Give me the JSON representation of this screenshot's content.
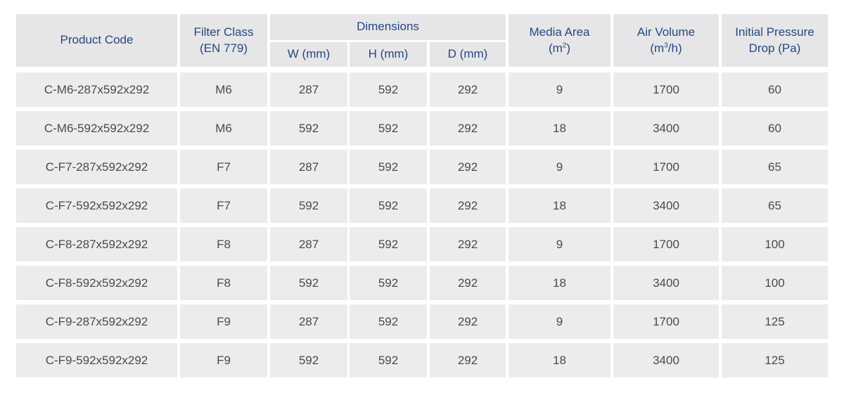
{
  "headers": {
    "product_code": "Product Code",
    "filter_class_line1": "Filter Class",
    "filter_class_line2": "(EN 779)",
    "dimensions": "Dimensions",
    "w": "W (mm)",
    "h": "H (mm)",
    "d": "D (mm)",
    "media_area_line1": "Media Area",
    "media_area_unit_base": "(m",
    "media_area_unit_sup": "2",
    "media_area_unit_end": ")",
    "air_volume_line1": "Air Volume",
    "air_volume_unit_base": "(m",
    "air_volume_unit_sup": "3",
    "air_volume_unit_end": "/h)",
    "pressure_line1": "Initial Pressure",
    "pressure_line2": "Drop (Pa)"
  },
  "rows": [
    {
      "code": "C-M6-287x592x292",
      "class": "M6",
      "w": "287",
      "h": "592",
      "d": "292",
      "area": "9",
      "volume": "1700",
      "pressure": "60"
    },
    {
      "code": "C-M6-592x592x292",
      "class": "M6",
      "w": "592",
      "h": "592",
      "d": "292",
      "area": "18",
      "volume": "3400",
      "pressure": "60"
    },
    {
      "code": "C-F7-287x592x292",
      "class": "F7",
      "w": "287",
      "h": "592",
      "d": "292",
      "area": "9",
      "volume": "1700",
      "pressure": "65"
    },
    {
      "code": "C-F7-592x592x292",
      "class": "F7",
      "w": "592",
      "h": "592",
      "d": "292",
      "area": "18",
      "volume": "3400",
      "pressure": "65"
    },
    {
      "code": "C-F8-287x592x292",
      "class": "F8",
      "w": "287",
      "h": "592",
      "d": "292",
      "area": "9",
      "volume": "1700",
      "pressure": "100"
    },
    {
      "code": "C-F8-592x592x292",
      "class": "F8",
      "w": "592",
      "h": "592",
      "d": "292",
      "area": "18",
      "volume": "3400",
      "pressure": "100"
    },
    {
      "code": "C-F9-287x592x292",
      "class": "F9",
      "w": "287",
      "h": "592",
      "d": "292",
      "area": "9",
      "volume": "1700",
      "pressure": "125"
    },
    {
      "code": "C-F9-592x592x292",
      "class": "F9",
      "w": "592",
      "h": "592",
      "d": "292",
      "area": "18",
      "volume": "3400",
      "pressure": "125"
    }
  ]
}
